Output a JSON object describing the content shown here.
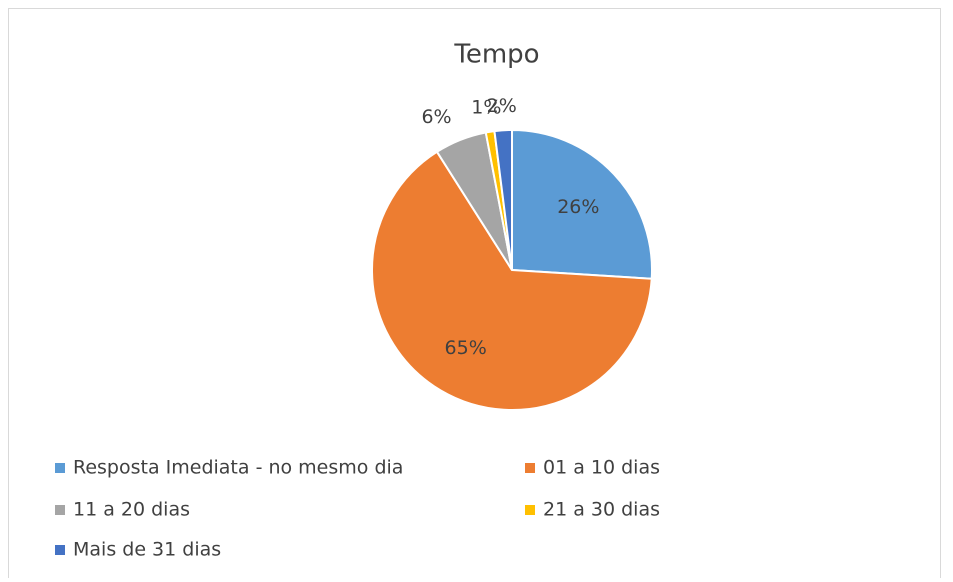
{
  "chart_data": {
    "type": "pie",
    "title": "Tempo",
    "categories": [
      "Resposta Imediata - no mesmo dia",
      "01 a 10 dias",
      "11 a 20 dias",
      "21 a 30 dias",
      "Mais de 31 dias"
    ],
    "values": [
      26,
      65,
      6,
      1,
      2
    ],
    "value_labels": [
      "26%",
      "65%",
      "6%",
      "1%",
      "2%"
    ],
    "colors": [
      "#5b9bd5",
      "#ed7d31",
      "#a5a5a5",
      "#ffc000",
      "#4472c4"
    ],
    "legend": "bottom"
  }
}
